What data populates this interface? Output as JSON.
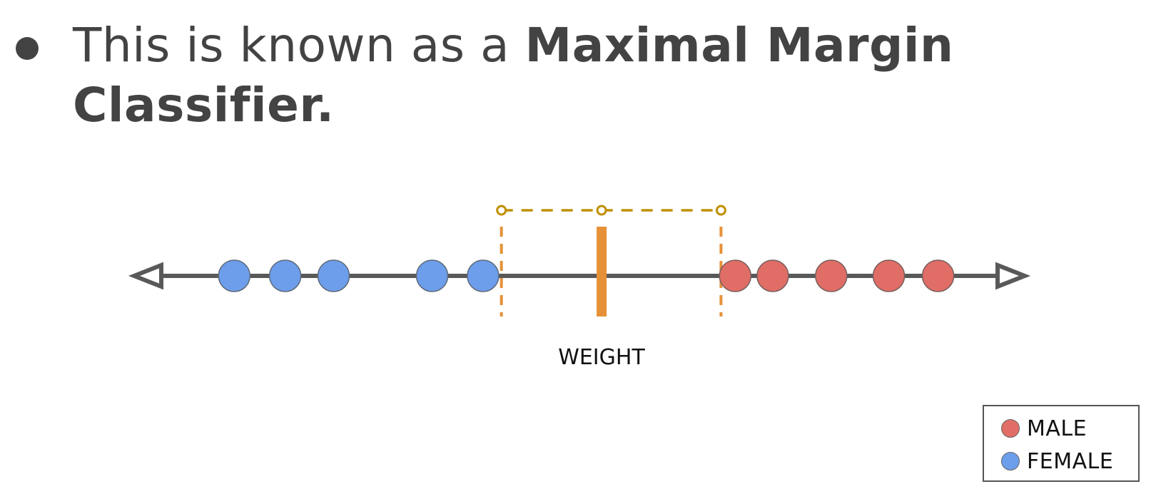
{
  "bullet": {
    "text_normal": "This is known as a ",
    "text_bold": "Maximal Margin Classifier."
  },
  "diagram": {
    "axis_label": "WEIGHT",
    "axis_range": [
      0,
      100
    ],
    "female_points": [
      8.4,
      14.5,
      20.3,
      32.1,
      38.2
    ],
    "male_points": [
      68.4,
      72.9,
      79.9,
      86.8,
      92.7
    ],
    "threshold": 52.4,
    "margin_left": 40.4,
    "margin_right": 66.7,
    "colors": {
      "male": "#e06e66",
      "female": "#6d9eeb",
      "axis": "#595959",
      "threshold": "#e69138",
      "margin_dash": "#e69138",
      "margin_top": "#bf9000"
    }
  },
  "legend": {
    "items": [
      {
        "label": "MALE",
        "color": "#e06e66"
      },
      {
        "label": "FEMALE",
        "color": "#6d9eeb"
      }
    ]
  }
}
